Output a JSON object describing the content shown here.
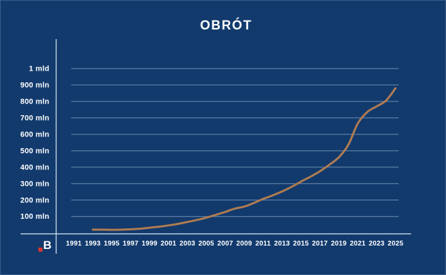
{
  "title": "OBRÓT",
  "logo": {
    "letter": "B",
    "dot_color": "#d7342e"
  },
  "colors": {
    "background": "#123a6d",
    "line": "#b07c50",
    "grid": "#bfd6eb",
    "axis": "#c9dbee",
    "text": "#ffffff"
  },
  "chart_data": {
    "type": "line",
    "title": "OBRÓT",
    "unit": "mln",
    "x": [
      1993,
      1994,
      1995,
      1996,
      1997,
      1998,
      1999,
      2000,
      2001,
      2002,
      2003,
      2004,
      2005,
      2006,
      2007,
      2008,
      2009,
      2010,
      2011,
      2012,
      2013,
      2014,
      2015,
      2016,
      2017,
      2018,
      2019,
      2020,
      2021,
      2022,
      2023,
      2024,
      2025
    ],
    "values": [
      20,
      20,
      19,
      20,
      22,
      26,
      32,
      38,
      46,
      55,
      67,
      79,
      93,
      110,
      128,
      148,
      160,
      182,
      207,
      228,
      252,
      280,
      312,
      342,
      375,
      415,
      460,
      535,
      665,
      735,
      770,
      805,
      880
    ],
    "y_ticks": [
      100,
      200,
      300,
      400,
      500,
      600,
      700,
      800,
      900,
      1000
    ],
    "y_tick_labels": [
      "100 mln",
      "200 mln",
      "300 mln",
      "400 mln",
      "500 mln",
      "600 mln",
      "700 mln",
      "800 mln",
      "900 mln",
      "1 mld"
    ],
    "x_tick_labels": [
      "1991",
      "1993",
      "1995",
      "1997",
      "1999",
      "2001",
      "2003",
      "2005",
      "2007",
      "2009",
      "2011",
      "2013",
      "2015",
      "2017",
      "2019",
      "2021",
      "2023",
      "2025"
    ],
    "xlim": [
      1991,
      2025
    ],
    "ylim": [
      0,
      1050
    ],
    "grid": true,
    "legend": "none"
  }
}
